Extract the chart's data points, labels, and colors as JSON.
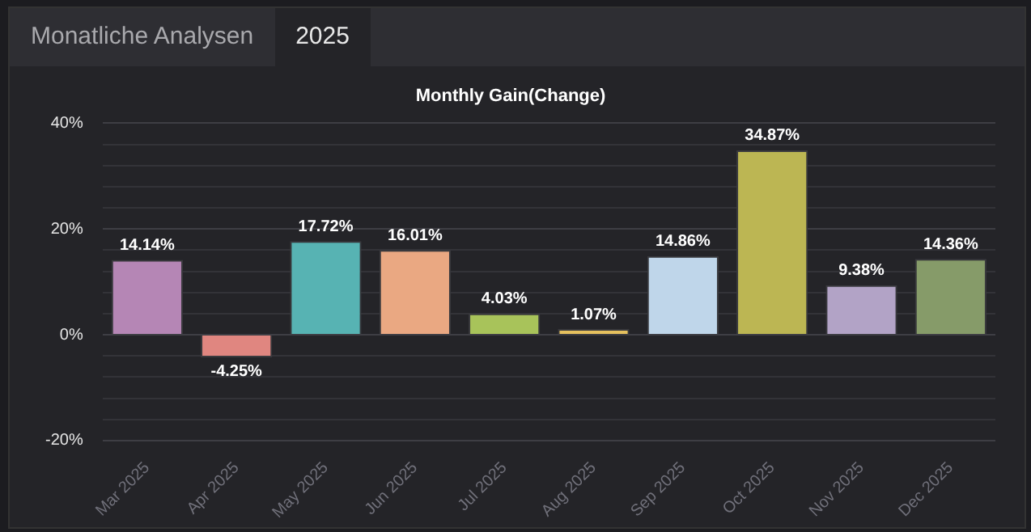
{
  "chart_data": {
    "type": "bar",
    "title": "Monthly Gain(Change)",
    "annotations": [
      "Monatliche Analysen",
      "2025"
    ],
    "categories": [
      "Mar 2025",
      "Apr 2025",
      "May 2025",
      "Jun 2025",
      "Jul 2025",
      "Aug 2025",
      "Sep 2025",
      "Oct 2025",
      "Nov 2025",
      "Dec 2025"
    ],
    "values": [
      14.14,
      -4.25,
      17.72,
      16.01,
      4.03,
      1.07,
      14.86,
      34.87,
      9.38,
      14.36
    ],
    "colors": [
      "#b586b5",
      "#e08680",
      "#57b3b3",
      "#eaa882",
      "#a8c35a",
      "#e5c05e",
      "#bfd6ea",
      "#bcb653",
      "#b2a3c6",
      "#869b69"
    ],
    "value_labels": [
      "14.14%",
      "-4.25%",
      "17.72%",
      "16.01%",
      "4.03%",
      "1.07%",
      "14.86%",
      "34.87%",
      "9.38%",
      "14.36%"
    ],
    "ylim": [
      -20,
      40
    ],
    "yticks": [
      {
        "value": -20,
        "label": "-20%"
      },
      {
        "value": -16,
        "label": null
      },
      {
        "value": -12,
        "label": null
      },
      {
        "value": -8,
        "label": null
      },
      {
        "value": -4,
        "label": null
      },
      {
        "value": 0,
        "label": "0%"
      },
      {
        "value": 4,
        "label": null
      },
      {
        "value": 8,
        "label": null
      },
      {
        "value": 12,
        "label": null
      },
      {
        "value": 16,
        "label": null
      },
      {
        "value": 20,
        "label": "20%"
      },
      {
        "value": 24,
        "label": null
      },
      {
        "value": 28,
        "label": null
      },
      {
        "value": 32,
        "label": null
      },
      {
        "value": 36,
        "label": null
      },
      {
        "value": 40,
        "label": "40%"
      }
    ],
    "grid": "y",
    "legend": false
  }
}
